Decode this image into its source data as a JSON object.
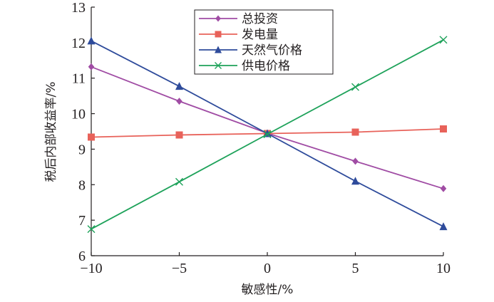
{
  "chart_data": {
    "type": "line",
    "xlabel": "敏感性/%",
    "ylabel": "税后内部收益率/%",
    "x": [
      -10,
      -5,
      0,
      5,
      10
    ],
    "xticks": [
      -10,
      -5,
      0,
      5,
      10
    ],
    "xtick_labels": [
      "−10",
      "−5",
      "0",
      "5",
      "10"
    ],
    "yticks": [
      6,
      7,
      8,
      9,
      10,
      11,
      12,
      13
    ],
    "xlim": [
      -10,
      10
    ],
    "ylim": [
      6,
      13
    ],
    "grid": false,
    "legend_position": "top-center",
    "series": [
      {
        "name": "总投资",
        "color": "#a04ca4",
        "marker": "diamond",
        "values": [
          11.32,
          10.35,
          9.45,
          8.66,
          7.89
        ]
      },
      {
        "name": "发电量",
        "color": "#e8625a",
        "marker": "square",
        "values": [
          9.34,
          9.4,
          9.44,
          9.48,
          9.57
        ]
      },
      {
        "name": "天然气价格",
        "color": "#2e4b9b",
        "marker": "triangle",
        "values": [
          12.05,
          10.77,
          9.44,
          8.1,
          6.82
        ]
      },
      {
        "name": "供电价格",
        "color": "#1ea25a",
        "marker": "cross",
        "values": [
          6.75,
          8.08,
          9.42,
          10.75,
          12.08
        ]
      }
    ]
  }
}
